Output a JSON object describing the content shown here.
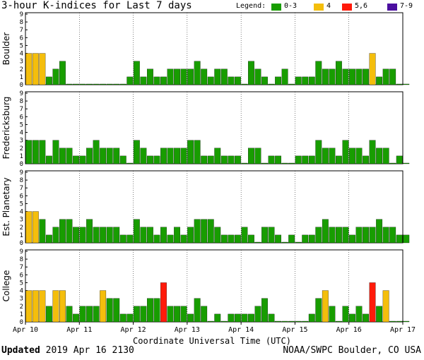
{
  "title": "3-hour K-indices for Last 7 days",
  "legend": {
    "label": "Legend:",
    "items": [
      {
        "label": "0-3",
        "color": "#189d00"
      },
      {
        "label": "4",
        "color": "#f4be0c"
      },
      {
        "label": "5,6",
        "color": "#ff1a0a"
      },
      {
        "label": "7-9",
        "color": "#4b0fa0"
      }
    ]
  },
  "footer": {
    "updated_label": "Updated",
    "updated_value": "2019 Apr 16 2130",
    "credit": "NOAA/SWPC Boulder, CO USA"
  },
  "chart_data": {
    "type": "bar",
    "xlabel": "Coordinate Universal Time (UTC)",
    "x_ticks": [
      "Apr 10",
      "Apr 11",
      "Apr 12",
      "Apr 13",
      "Apr 14",
      "Apr 15",
      "Apr 16",
      "Apr 17"
    ],
    "ylim": [
      0,
      9
    ],
    "y_ticks": [
      "0",
      "1",
      "2",
      "3",
      "4",
      "5",
      "6",
      "7",
      "8",
      "9"
    ],
    "panels": [
      {
        "name": "Boulder",
        "values": [
          4,
          4,
          4,
          1,
          2,
          3,
          0,
          0,
          0,
          0,
          0,
          0,
          0,
          0,
          0,
          1,
          3,
          1,
          2,
          1,
          1,
          2,
          2,
          2,
          2,
          3,
          2,
          1,
          2,
          2,
          1,
          1,
          0,
          3,
          2,
          1,
          0,
          1,
          2,
          0,
          1,
          1,
          1,
          3,
          2,
          2,
          3,
          2,
          2,
          2,
          2,
          4,
          1,
          2,
          2,
          0,
          0
        ]
      },
      {
        "name": "Fredericksburg",
        "values": [
          3,
          3,
          3,
          1,
          3,
          2,
          2,
          1,
          1,
          2,
          3,
          2,
          2,
          2,
          1,
          0,
          3,
          2,
          1,
          1,
          2,
          2,
          2,
          2,
          3,
          3,
          1,
          1,
          2,
          1,
          1,
          1,
          0,
          2,
          2,
          0,
          1,
          1,
          0,
          0,
          1,
          1,
          1,
          3,
          2,
          2,
          1,
          3,
          2,
          2,
          1,
          3,
          2,
          2,
          0,
          1,
          0
        ]
      },
      {
        "name": "Est. Planetary",
        "values": [
          4,
          4,
          3,
          1,
          2,
          3,
          3,
          2,
          2,
          3,
          2,
          2,
          2,
          2,
          1,
          1,
          3,
          2,
          2,
          1,
          2,
          1,
          2,
          1,
          2,
          3,
          3,
          3,
          2,
          1,
          1,
          1,
          2,
          1,
          0,
          2,
          2,
          1,
          0,
          1,
          0,
          1,
          1,
          2,
          3,
          2,
          2,
          2,
          1,
          2,
          2,
          2,
          3,
          2,
          2,
          1,
          1
        ]
      },
      {
        "name": "College",
        "values": [
          4,
          4,
          4,
          2,
          4,
          4,
          2,
          1,
          2,
          2,
          2,
          4,
          3,
          3,
          1,
          1,
          2,
          2,
          3,
          3,
          5,
          2,
          2,
          2,
          1,
          3,
          2,
          0,
          1,
          0,
          1,
          1,
          1,
          1,
          2,
          3,
          1,
          0,
          0,
          0,
          0,
          0,
          1,
          3,
          4,
          2,
          0,
          2,
          1,
          2,
          1,
          5,
          2,
          4,
          0,
          0,
          0
        ]
      }
    ]
  }
}
